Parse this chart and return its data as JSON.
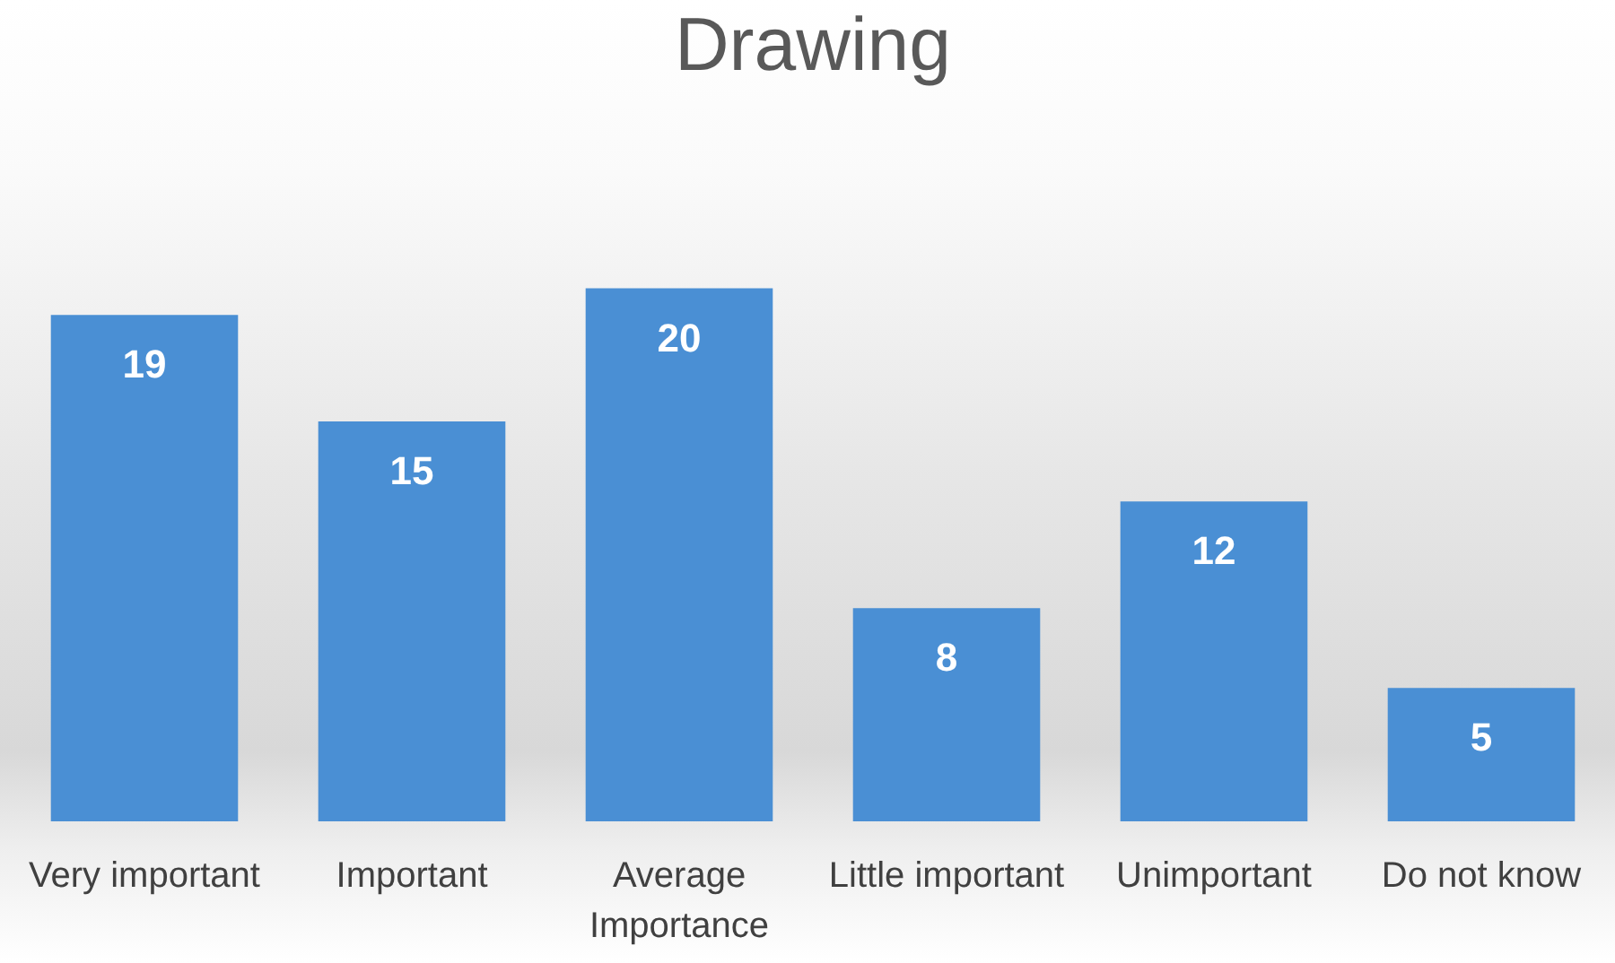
{
  "chart_data": {
    "type": "bar",
    "title": "Drawing",
    "categories": [
      "Very important",
      "Important",
      "Average Importance",
      "Little important",
      "Unimportant",
      "Do not know"
    ],
    "values": [
      19,
      15,
      20,
      8,
      12,
      5
    ],
    "color": "#4a8fd4",
    "data_labels": true
  }
}
